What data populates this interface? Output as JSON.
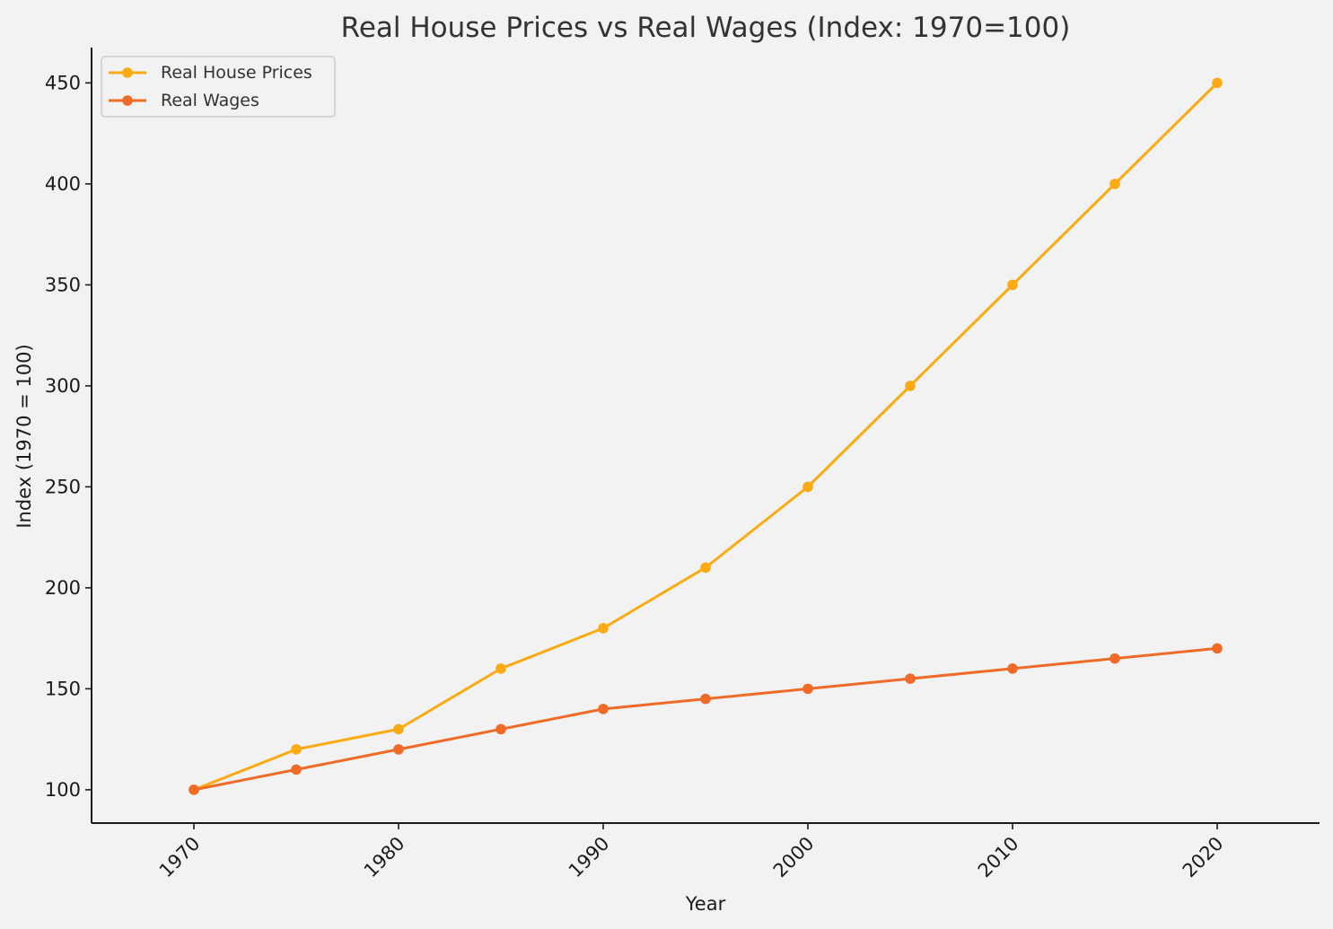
{
  "chart_data": {
    "type": "line",
    "title": "Real House Prices vs Real Wages (Index: 1970=100)",
    "xlabel": "Year",
    "ylabel": "Index (1970 = 100)",
    "x": [
      1970,
      1975,
      1980,
      1985,
      1990,
      1995,
      2000,
      2005,
      2010,
      2015,
      2020
    ],
    "xlim": [
      1965,
      2025
    ],
    "ylim": [
      83.5,
      467.5
    ],
    "x_ticks": [
      "1970",
      "1980",
      "1990",
      "2000",
      "2010",
      "2020"
    ],
    "y_ticks": [
      "100",
      "150",
      "200",
      "250",
      "300",
      "350",
      "400",
      "450"
    ],
    "grid": false,
    "legend_position": "top-left",
    "series": [
      {
        "name": "Real House Prices",
        "color": "#FBAA12",
        "values": [
          100,
          120,
          130,
          160,
          180,
          210,
          250,
          300,
          350,
          400,
          450
        ]
      },
      {
        "name": "Real Wages",
        "color": "#EF6B27",
        "values": [
          100,
          110,
          120,
          130,
          140,
          145,
          150,
          155,
          160,
          165,
          170
        ]
      }
    ]
  }
}
